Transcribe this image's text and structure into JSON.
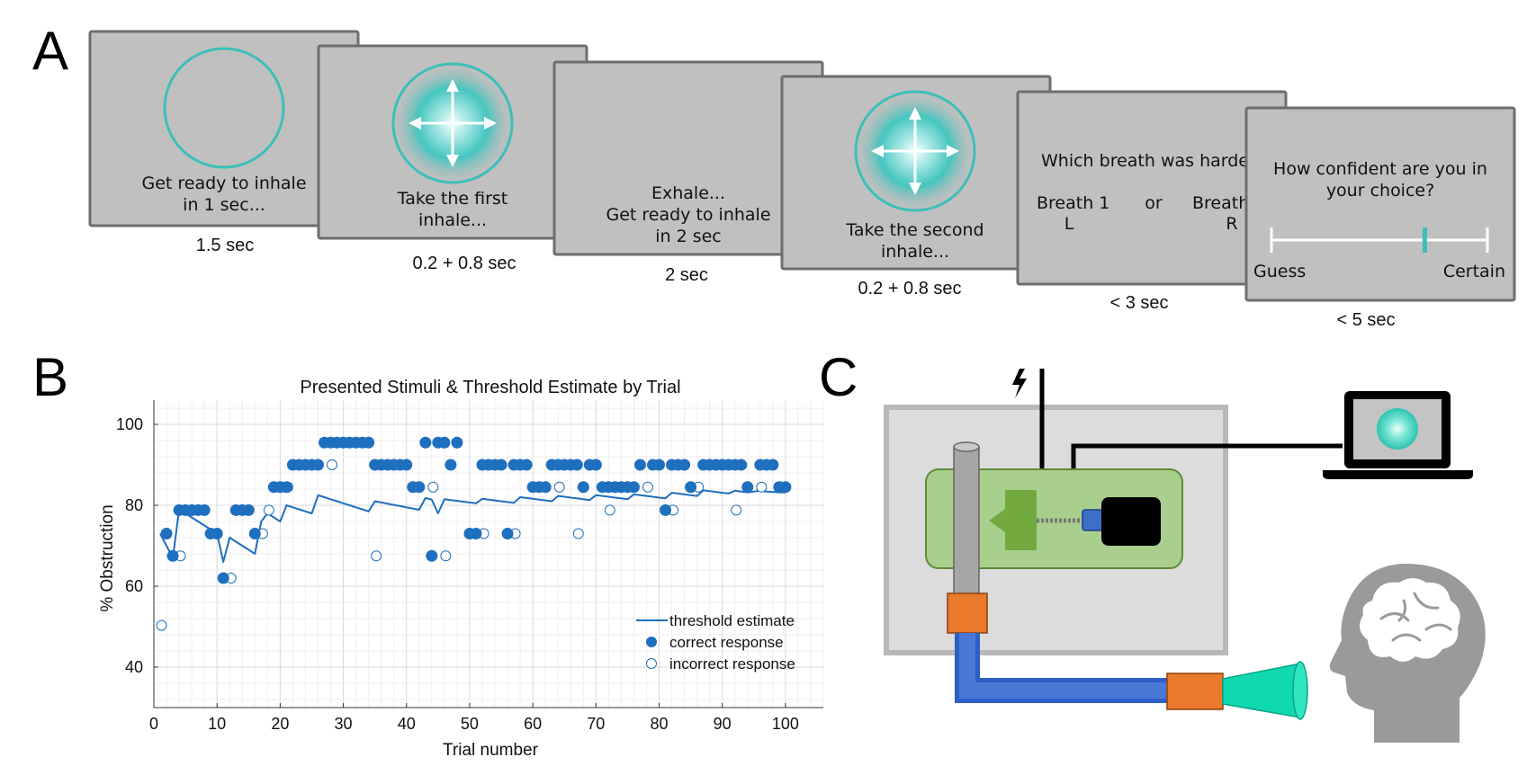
{
  "panels": {
    "a": "A",
    "b": "B",
    "c": "C"
  },
  "panel_a": {
    "screens": [
      {
        "lines": [
          "Get ready to inhale",
          "in 1 sec..."
        ],
        "duration": "1.5 sec",
        "icon": "circle"
      },
      {
        "lines": [
          "Take the first",
          "inhale..."
        ],
        "duration": "0.2 + 0.8 sec",
        "icon": "breath-arrows"
      },
      {
        "lines": [
          "Exhale...",
          "Get ready to inhale",
          "in 2 sec"
        ],
        "duration": "2 sec",
        "icon": "none"
      },
      {
        "lines": [
          "Take the second",
          "inhale..."
        ],
        "duration": "0.2 + 0.8 sec",
        "icon": "breath-arrows"
      },
      {
        "question": "Which breath was harde",
        "option_1": "Breath 1",
        "option_1_key": "L",
        "or": "or",
        "option_2": "Breath",
        "option_2_key": "R",
        "duration": "< 3 sec"
      },
      {
        "question_lines": [
          "How confident are you in",
          "your choice?"
        ],
        "left_anchor": "Guess",
        "right_anchor": "Certain",
        "rating": 0.71,
        "duration": "< 5 sec"
      }
    ],
    "colors": {
      "screen": "#c0c0c0",
      "accent": "#3cbfba"
    }
  },
  "chart_data": {
    "type": "scatter",
    "title": "Presented Stimuli & Threshold Estimate by Trial",
    "xlabel": "Trial number",
    "ylabel": "% Obstruction",
    "xlim": [
      0,
      106
    ],
    "ylim": [
      30,
      106
    ],
    "xticks": [
      0,
      10,
      20,
      30,
      40,
      50,
      60,
      70,
      80,
      90,
      100
    ],
    "yticks": [
      40,
      60,
      80,
      100
    ],
    "grid": true,
    "legend": {
      "placement": "bottom-right",
      "entries": [
        "threshold estimate",
        "correct response",
        "incorrect response"
      ]
    },
    "colors": {
      "series": "#1f6fbf"
    },
    "threshold_estimate": {
      "x": [
        1,
        2,
        3,
        4,
        5,
        6,
        7,
        8,
        9,
        10,
        11,
        12,
        13,
        14,
        15,
        16,
        17,
        18,
        19,
        20,
        21,
        22,
        23,
        24,
        25,
        26,
        27,
        28,
        29,
        30,
        31,
        32,
        33,
        34,
        35,
        36,
        37,
        38,
        39,
        40,
        41,
        42,
        43,
        44,
        45,
        46,
        47,
        48,
        49,
        50,
        51,
        52,
        53,
        54,
        55,
        56,
        57,
        58,
        59,
        60,
        61,
        62,
        63,
        64,
        65,
        66,
        67,
        68,
        69,
        70,
        71,
        72,
        73,
        74,
        75,
        76,
        77,
        78,
        79,
        80,
        81,
        82,
        83,
        84,
        85,
        86,
        87,
        88,
        89,
        90,
        91,
        92,
        93,
        94,
        95,
        96,
        97,
        98,
        99,
        100
      ],
      "y": [
        73,
        70,
        67,
        79,
        78,
        77,
        76,
        75,
        74,
        73,
        66,
        72,
        71,
        70,
        69,
        68,
        76,
        78,
        77,
        76,
        80,
        79.5,
        79,
        78.5,
        78,
        82.5,
        82,
        81.5,
        81,
        80.5,
        80,
        79.5,
        79,
        78.5,
        81,
        80.7,
        80.4,
        80.1,
        79.8,
        79.5,
        79.2,
        78.9,
        81.8,
        81.4,
        78,
        81.5,
        81.3,
        81.1,
        80.9,
        80.7,
        80.5,
        81.6,
        81.4,
        81.2,
        81,
        80.8,
        80.6,
        82,
        81.8,
        81.6,
        81.4,
        81.2,
        81,
        82.3,
        82.1,
        81.9,
        81.7,
        81.5,
        81.3,
        82.5,
        82.3,
        82.1,
        81.9,
        81.7,
        81.5,
        82.7,
        82.5,
        82.3,
        82.1,
        81.9,
        81.7,
        83.1,
        82.9,
        82.7,
        82.5,
        82.3,
        83.7,
        83.5,
        83.3,
        83.1,
        82.9,
        83.6,
        83.4,
        83.2,
        83.4,
        83.6,
        83.4,
        83.3,
        83.2,
        83.2
      ]
    },
    "correct_response": {
      "x": [
        2,
        3,
        4,
        5,
        6,
        7,
        8,
        9,
        10,
        11,
        13,
        14,
        15,
        16,
        19,
        20,
        21,
        22,
        23,
        24,
        25,
        26,
        27,
        28,
        29,
        30,
        31,
        32,
        33,
        34,
        35,
        36,
        37,
        38,
        39,
        40,
        41,
        42,
        43,
        44,
        45,
        46,
        47,
        48,
        50,
        51,
        52,
        53,
        54,
        55,
        56,
        57,
        58,
        59,
        60,
        61,
        62,
        63,
        64,
        65,
        66,
        67,
        68,
        69,
        70,
        71,
        72,
        73,
        74,
        75,
        76,
        77,
        79,
        80,
        81,
        82,
        83,
        84,
        85,
        87,
        88,
        89,
        90,
        91,
        92,
        93,
        94,
        96,
        97,
        98,
        99,
        100
      ],
      "y": [
        73,
        67.5,
        78.8,
        78.8,
        78.8,
        78.8,
        78.8,
        73,
        73,
        62,
        78.8,
        78.8,
        78.8,
        73,
        84.5,
        84.5,
        84.5,
        90,
        90,
        90,
        90,
        90,
        95.5,
        95.5,
        95.5,
        95.5,
        95.5,
        95.5,
        95.5,
        95.5,
        90,
        90,
        90,
        90,
        90,
        90,
        84.5,
        84.5,
        95.5,
        67.5,
        95.5,
        95.5,
        90,
        95.5,
        73,
        73,
        90,
        90,
        90,
        90,
        73,
        90,
        90,
        90,
        84.5,
        84.5,
        84.5,
        90,
        90,
        90,
        90,
        90,
        84.5,
        90,
        90,
        84.5,
        84.5,
        84.5,
        84.5,
        84.5,
        84.5,
        90,
        90,
        90,
        78.8,
        90,
        90,
        90,
        84.5,
        90,
        90,
        90,
        90,
        90,
        90,
        90,
        84.5,
        90,
        90,
        90,
        84.5,
        84.5
      ]
    },
    "incorrect_response": {
      "x": [
        1,
        4,
        12,
        17,
        18,
        21,
        28,
        35,
        44,
        46,
        52,
        57,
        64,
        67,
        72,
        78,
        82,
        86,
        92,
        96
      ],
      "y": [
        50.3,
        67.5,
        62,
        73,
        78.8,
        84.5,
        90,
        67.5,
        84.5,
        67.5,
        73,
        73,
        84.5,
        73,
        78.8,
        84.5,
        78.8,
        84.5,
        78.8,
        84.5
      ]
    }
  },
  "panel_c": {
    "items": [
      "lightning-icon",
      "laptop-icon",
      "breath-stimulus-device",
      "tubing",
      "mouthpiece",
      "head-brain-icon"
    ]
  }
}
